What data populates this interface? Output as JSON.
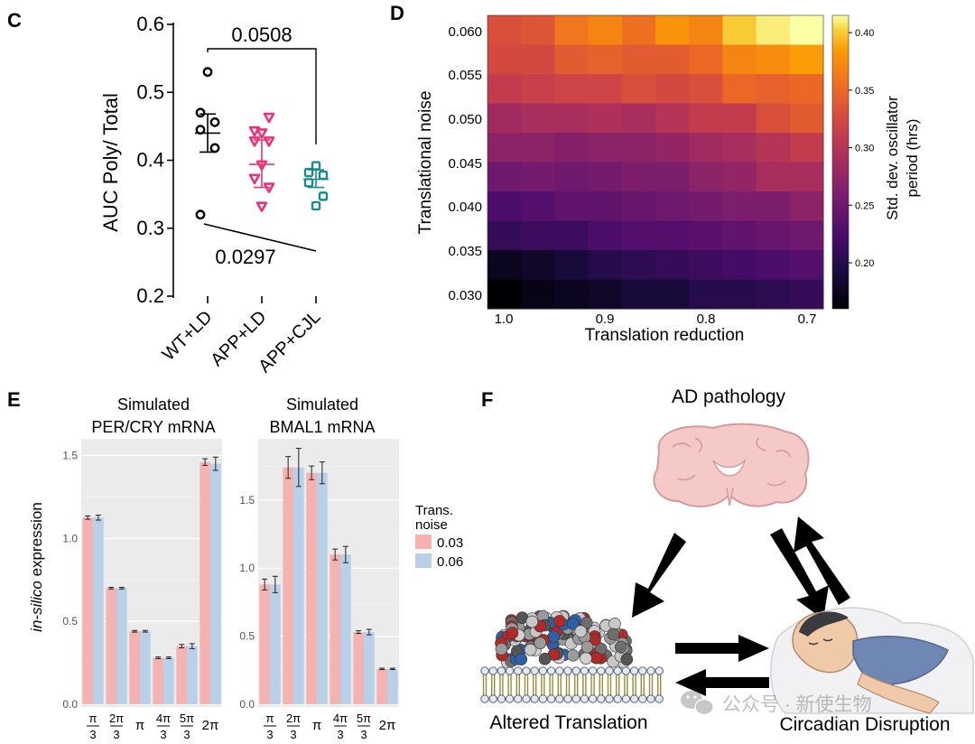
{
  "panel_labels": {
    "c": "C",
    "d": "D",
    "e": "E",
    "f": "F"
  },
  "chart_data": [
    {
      "panel": "C",
      "type": "scatter",
      "ylabel": "AUC Poly/ Total",
      "ylim": [
        0.2,
        0.6
      ],
      "yticks": [
        "0.2",
        "0.3",
        "0.4",
        "0.5",
        "0.6"
      ],
      "categories": [
        "WT+LD",
        "APP+LD",
        "APP+CJL"
      ],
      "series": [
        {
          "name": "WT+LD",
          "marker": "circle",
          "color": "#000000",
          "values": [
            0.53,
            0.47,
            0.456,
            0.445,
            0.418,
            0.32
          ],
          "mean": 0.44,
          "sem_upper": 0.468,
          "sem_lower": 0.412
        },
        {
          "name": "APP+LD",
          "marker": "triangle-down",
          "color": "#e8327c",
          "values": [
            0.463,
            0.443,
            0.44,
            0.428,
            0.428,
            0.393,
            0.373,
            0.36,
            0.332
          ],
          "mean": 0.394,
          "sem_upper": 0.43,
          "sem_lower": 0.36
        },
        {
          "name": "APP+CJL",
          "marker": "square",
          "color": "#1a8b8b",
          "values": [
            0.392,
            0.382,
            0.378,
            0.367,
            0.347,
            0.333
          ],
          "mean": 0.372,
          "sem_upper": 0.386,
          "sem_lower": 0.36
        }
      ],
      "annotations": [
        {
          "label": "0.0508",
          "between": [
            "WT+LD",
            "APP+CJL"
          ]
        },
        {
          "label": "0.0297",
          "between": [
            "WT+LD",
            "APP+CJL"
          ]
        }
      ]
    },
    {
      "panel": "D",
      "type": "heatmap",
      "xlabel": "Translation reduction",
      "ylabel": "Translational noise",
      "xticks": [
        "1.0",
        "0.9",
        "0.8",
        "0.7"
      ],
      "yticks": [
        "0.060",
        "0.055",
        "0.050",
        "0.045",
        "0.040",
        "0.035",
        "0.030"
      ],
      "colorbar_label": "Std. dev. oscillator period (hrs)",
      "colorbar_ticks": [
        "0.40",
        "0.35",
        "0.30",
        "0.25",
        "0.20"
      ],
      "colorbar_range": [
        0.16,
        0.415
      ],
      "rows": [
        [
          0.33,
          0.335,
          0.36,
          0.37,
          0.355,
          0.38,
          0.37,
          0.4,
          0.41,
          0.415
        ],
        [
          0.325,
          0.325,
          0.34,
          0.345,
          0.34,
          0.34,
          0.35,
          0.37,
          0.375,
          0.385
        ],
        [
          0.31,
          0.315,
          0.32,
          0.32,
          0.33,
          0.325,
          0.33,
          0.35,
          0.345,
          0.35
        ],
        [
          0.285,
          0.29,
          0.29,
          0.295,
          0.29,
          0.3,
          0.31,
          0.31,
          0.33,
          0.34
        ],
        [
          0.27,
          0.27,
          0.265,
          0.27,
          0.27,
          0.275,
          0.285,
          0.29,
          0.3,
          0.31
        ],
        [
          0.25,
          0.255,
          0.25,
          0.255,
          0.26,
          0.26,
          0.27,
          0.275,
          0.29,
          0.29
        ],
        [
          0.225,
          0.23,
          0.24,
          0.24,
          0.245,
          0.25,
          0.255,
          0.26,
          0.26,
          0.27
        ],
        [
          0.21,
          0.215,
          0.215,
          0.225,
          0.23,
          0.23,
          0.235,
          0.24,
          0.245,
          0.25
        ],
        [
          0.175,
          0.18,
          0.19,
          0.2,
          0.205,
          0.21,
          0.215,
          0.22,
          0.225,
          0.23
        ],
        [
          0.16,
          0.17,
          0.175,
          0.18,
          0.19,
          0.19,
          0.2,
          0.2,
          0.205,
          0.21
        ]
      ]
    },
    {
      "panel": "E1",
      "type": "bar",
      "title": "Simulated PER/CRY mRNA",
      "title_lines": [
        "Simulated",
        "PER/CRY mRNA"
      ],
      "ylabel_italic": "in-silico",
      "ylabel_rest": " expression",
      "ylim": [
        0,
        1.6
      ],
      "yticks": [
        "0.0",
        "0.5",
        "1.0",
        "1.5"
      ],
      "categories": [
        "π/3",
        "2π/3",
        "π",
        "4π/3",
        "5π/3",
        "2π"
      ],
      "series": [
        {
          "name": "0.03",
          "color": "#f4b3b0",
          "values": [
            1.125,
            0.7,
            0.44,
            0.28,
            0.35,
            1.46
          ],
          "err": [
            0.01,
            0.005,
            0.005,
            0.005,
            0.01,
            0.02
          ]
        },
        {
          "name": "0.06",
          "color": "#b8d1e8",
          "values": [
            1.125,
            0.7,
            0.44,
            0.28,
            0.35,
            1.45
          ],
          "err": [
            0.015,
            0.005,
            0.005,
            0.005,
            0.015,
            0.04
          ]
        }
      ]
    },
    {
      "panel": "E2",
      "type": "bar",
      "title": "Simulated BMAL1 mRNA",
      "title_lines": [
        "Simulated",
        "BMAL1 mRNA"
      ],
      "ylim": [
        0,
        1.95
      ],
      "yticks": [
        "0.0",
        "0.5",
        "1.0",
        "1.5"
      ],
      "categories": [
        "π/3",
        "2π/3",
        "π",
        "4π/3",
        "5π/3",
        "2π"
      ],
      "series": [
        {
          "name": "0.03",
          "color": "#f4b3b0",
          "values": [
            0.88,
            1.74,
            1.7,
            1.1,
            0.53,
            0.26
          ],
          "err": [
            0.04,
            0.08,
            0.05,
            0.04,
            0.01,
            0.005
          ]
        },
        {
          "name": "0.06",
          "color": "#b8d1e8",
          "values": [
            0.88,
            1.74,
            1.7,
            1.1,
            0.53,
            0.26
          ],
          "err": [
            0.06,
            0.14,
            0.08,
            0.06,
            0.02,
            0.005
          ]
        }
      ],
      "legend": {
        "title_line1": "Trans.",
        "title_line2": "noise",
        "items": [
          "0.03",
          "0.06"
        ]
      }
    }
  ],
  "diagram_f": {
    "top_label": "AD pathology",
    "left_label": "Altered Translation",
    "right_label": "Circadian Disruption",
    "watermark": "公众号 · 新使生物",
    "icons": [
      "brain-icon",
      "ribosome-icon",
      "membrane-icon",
      "sleeping-person-icon",
      "wechat-icon"
    ]
  }
}
